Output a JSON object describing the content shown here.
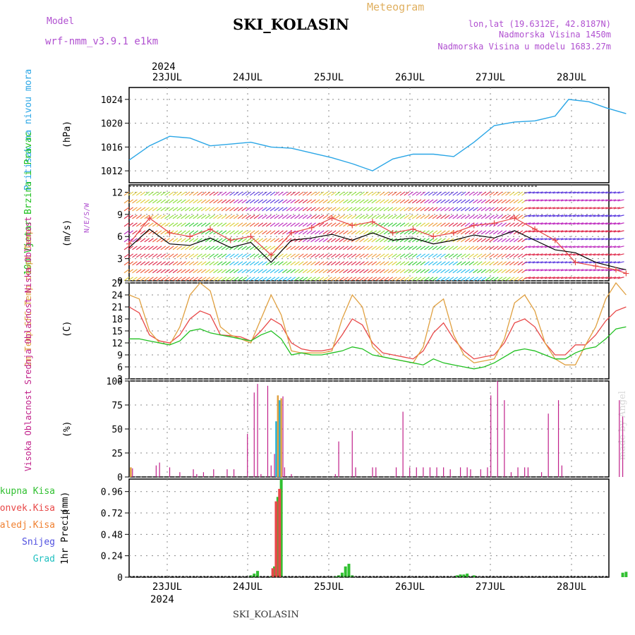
{
  "header": {
    "model_label": "Model",
    "model_value": "wrf-nmm_v3.9.1 e1km",
    "location": "SKI_KOLASIN",
    "chart_kind": "Meteogram",
    "lonlat": "lon,lat (19.6312E, 42.8187N)",
    "altitude": "Nadmorska Visina 1450m",
    "model_altitude": "Nadmorska Visina u modelu 1683.27m",
    "watermark": "made by Angel",
    "footer_station": "SKI_KOLASIN"
  },
  "colors": {
    "pressure": "#2aa6e6",
    "temp2m": "#e84848",
    "sfc_temp": "#e0a040",
    "dewpoint": "#20c020",
    "high_cloud": "#20b0d8",
    "mid_cloud": "#e0a040",
    "low_cloud": "#c0208a",
    "wind_mean": "#000000",
    "gust": "#e84848",
    "model_label": "#b050d0",
    "total_precip": "#30c030",
    "convective": "#e84848",
    "freezing": "#f08030",
    "snow": "#5050e0",
    "grad": "#20c0c0"
  },
  "chart_data": [
    {
      "type": "line",
      "name": "pressure",
      "ylabel": "Pritisak na nivou mora",
      "unit": "(hPa)",
      "ylim": [
        1010,
        1026
      ],
      "yticks": [
        1012,
        1016,
        1020,
        1024
      ],
      "x_days_top": [
        "23JUL",
        "24JUL",
        "25JUL",
        "26JUL",
        "27JUL",
        "28JUL"
      ],
      "year": "2024",
      "x_hours": [
        0,
        6,
        12,
        18,
        24,
        30,
        36,
        42,
        48,
        54,
        60,
        66,
        72,
        78,
        84,
        90,
        96,
        102,
        108,
        114,
        120,
        126,
        130,
        136,
        141,
        147
      ],
      "values": [
        1013.8,
        1016.2,
        1017.8,
        1017.5,
        1016.2,
        1016.5,
        1016.8,
        1016.0,
        1015.8,
        1015.0,
        1014.2,
        1013.2,
        1012.0,
        1014.0,
        1014.8,
        1014.8,
        1014.4,
        1016.8,
        1019.6,
        1020.2,
        1020.4,
        1021.2,
        1024.0,
        1023.6,
        1022.6,
        1021.6
      ],
      "grid": true
    },
    {
      "type": "line",
      "name": "wind",
      "ylabel": "10m Vjetar Brzina i Pravac",
      "unit": "(m/s)",
      "ylim": [
        0,
        13
      ],
      "yticks": [
        0,
        3,
        6,
        9,
        12
      ],
      "compass": "N/E/S/W",
      "series": [
        {
          "name": "speed",
          "x_hours": [
            0,
            6,
            12,
            18,
            24,
            30,
            36,
            42,
            48,
            54,
            60,
            66,
            72,
            78,
            84,
            90,
            96,
            102,
            108,
            114,
            120,
            126,
            132,
            138,
            144,
            147
          ],
          "values": [
            4.5,
            7.0,
            5.0,
            4.8,
            5.8,
            4.5,
            5.2,
            2.5,
            5.5,
            5.8,
            6.3,
            5.5,
            6.5,
            5.5,
            5.8,
            5.0,
            5.5,
            6.2,
            5.8,
            6.8,
            5.5,
            4.2,
            3.8,
            2.5,
            1.8,
            1.5
          ]
        },
        {
          "name": "gust",
          "x_hours": [
            0,
            6,
            12,
            18,
            24,
            30,
            36,
            42,
            48,
            54,
            60,
            66,
            72,
            78,
            84,
            90,
            96,
            102,
            108,
            114,
            120,
            126,
            132,
            138,
            144,
            147
          ],
          "values": [
            5.0,
            8.5,
            6.5,
            6.0,
            7.0,
            5.5,
            6.0,
            3.5,
            6.5,
            7.2,
            8.5,
            7.5,
            8.0,
            6.5,
            7.0,
            6.0,
            6.5,
            7.5,
            7.8,
            8.5,
            7.0,
            5.5,
            2.5,
            2.0,
            1.5,
            1.0
          ]
        }
      ],
      "grid": true
    },
    {
      "type": "line",
      "name": "temperature",
      "ylabel": "2m Temp SFC Temp dewpt Temp",
      "unit": "(C)",
      "ylim": [
        3,
        27
      ],
      "yticks": [
        3,
        6,
        9,
        12,
        15,
        18,
        21,
        24,
        27
      ],
      "series": [
        {
          "name": "2m Temp",
          "x_hours": [
            0,
            3,
            6,
            9,
            12,
            15,
            18,
            21,
            24,
            27,
            30,
            33,
            36,
            39,
            42,
            45,
            48,
            51,
            54,
            57,
            60,
            63,
            66,
            69,
            72,
            75,
            78,
            81,
            84,
            87,
            90,
            93,
            96,
            99,
            102,
            105,
            108,
            111,
            114,
            117,
            120,
            123,
            126,
            129,
            132,
            135,
            138,
            141,
            144,
            147
          ],
          "values": [
            21,
            19.5,
            14,
            12.5,
            12,
            14,
            18,
            20,
            19,
            14,
            13.8,
            13.5,
            12.5,
            15,
            18,
            16.5,
            12,
            10.5,
            10,
            10,
            10.5,
            14,
            18,
            16.5,
            12,
            9.5,
            9,
            8.5,
            8,
            10,
            14.5,
            17,
            13,
            10,
            8,
            8.5,
            9,
            12,
            17,
            18,
            16,
            12,
            9,
            9,
            11.5,
            11.5,
            14,
            17.5,
            20,
            21
          ]
        },
        {
          "name": "SFC Temp",
          "x_hours": [
            0,
            3,
            6,
            9,
            12,
            15,
            18,
            21,
            24,
            27,
            30,
            33,
            36,
            39,
            42,
            45,
            48,
            51,
            54,
            57,
            60,
            63,
            66,
            69,
            72,
            75,
            78,
            81,
            84,
            87,
            90,
            93,
            96,
            99,
            102,
            105,
            108,
            111,
            114,
            117,
            120,
            123,
            126,
            129,
            132,
            135,
            138,
            141,
            144,
            147
          ],
          "values": [
            24,
            23,
            15,
            12,
            11.5,
            16,
            24,
            27,
            25,
            16,
            14,
            13,
            12,
            18,
            24,
            19,
            10,
            9.5,
            9.5,
            9.5,
            10,
            18,
            24,
            21,
            11,
            8.5,
            8,
            7.5,
            7,
            11,
            21,
            23,
            14,
            9,
            7,
            7.5,
            8,
            13,
            22,
            24,
            20,
            12,
            8,
            6.5,
            6.5,
            11.5,
            16,
            23,
            27,
            24
          ]
        },
        {
          "name": "dewpt Temp",
          "x_hours": [
            0,
            3,
            6,
            9,
            12,
            15,
            18,
            21,
            24,
            27,
            30,
            33,
            36,
            39,
            42,
            45,
            48,
            51,
            54,
            57,
            60,
            63,
            66,
            69,
            72,
            75,
            78,
            81,
            84,
            87,
            90,
            93,
            96,
            99,
            102,
            105,
            108,
            111,
            114,
            117,
            120,
            123,
            126,
            129,
            132,
            135,
            138,
            141,
            144,
            147
          ],
          "values": [
            13,
            13,
            12.5,
            12,
            11.5,
            12.5,
            15,
            15.5,
            14.5,
            14,
            13.5,
            13,
            12.5,
            14,
            15,
            13,
            9,
            9.5,
            9,
            9,
            9.5,
            10,
            11,
            10.5,
            9,
            8.5,
            8,
            7.5,
            7,
            6.5,
            8,
            7,
            6.5,
            6,
            5.5,
            6,
            7,
            8.5,
            10,
            10.5,
            10,
            9,
            8,
            8,
            9.5,
            10.5,
            11,
            13,
            15.5,
            16
          ]
        }
      ],
      "grid": true
    },
    {
      "type": "bar",
      "name": "cloud",
      "ylabel": "Visoka Oblacnost Srednja Oblacnost Niska Oblacnost",
      "unit": "(%)",
      "ylim": [
        0,
        100
      ],
      "yticks": [
        0,
        25,
        50,
        75,
        100
      ],
      "series": [
        {
          "name": "Visoka Oblacnost",
          "x_hours": [
            43.5,
            44.5
          ],
          "values": [
            58,
            80
          ]
        },
        {
          "name": "Srednja Oblacnost",
          "x_hours": [
            0.5,
            44.0,
            45.0
          ],
          "values": [
            10,
            85,
            82
          ]
        },
        {
          "name": "Niska Oblacnost",
          "x_hours": [
            1,
            8,
            9,
            12,
            15,
            19,
            20,
            22,
            25,
            29,
            31,
            35,
            37,
            38,
            39,
            41,
            42,
            43,
            45.5,
            46,
            48,
            61,
            62,
            66,
            67,
            72,
            73,
            79,
            81,
            83,
            85,
            87,
            89,
            91,
            93,
            95,
            98,
            100,
            101,
            104,
            106,
            107,
            109,
            111,
            113,
            115,
            117,
            118,
            122,
            124,
            127,
            128,
            145,
            146
          ],
          "values": [
            9,
            12,
            15,
            10,
            5,
            8,
            3,
            5,
            8,
            8,
            8,
            45,
            88,
            97,
            3,
            95,
            12,
            24,
            84,
            10,
            3,
            3,
            37,
            48,
            10,
            10,
            10,
            10,
            68,
            10,
            10,
            10,
            10,
            10,
            10,
            8,
            10,
            10,
            8,
            8,
            10,
            85,
            100,
            80,
            5,
            10,
            10,
            10,
            5,
            66,
            80,
            12,
            80,
            63
          ]
        }
      ],
      "grid": true
    },
    {
      "type": "bar",
      "name": "precipitation",
      "ylabel": "1hr Precip",
      "unit": "(mm)",
      "ylim": [
        0,
        1.1
      ],
      "yticks": [
        0,
        0.24,
        0.48,
        0.72,
        0.96
      ],
      "x_days_bottom": [
        "23JUL",
        "24JUL",
        "25JUL",
        "26JUL",
        "27JUL",
        "28JUL"
      ],
      "year_bottom": "2024",
      "legend": [
        "Ukupna Kisa",
        "Konvek.Kisa",
        "Zaledj.Kisa",
        "Snijeg",
        "Grad"
      ],
      "series": [
        {
          "name": "Ukupna Kisa",
          "x_hours": [
            36,
            37,
            38,
            42,
            43,
            44,
            45,
            61,
            62,
            63,
            64,
            65,
            66,
            97,
            98,
            99,
            100,
            102,
            146,
            147
          ],
          "values": [
            0.02,
            0.04,
            0.07,
            0.01,
            0.12,
            0.9,
            1.1,
            0.01,
            0.02,
            0.05,
            0.12,
            0.15,
            0.02,
            0.02,
            0.03,
            0.03,
            0.04,
            0.02,
            0.05,
            0.06
          ]
        },
        {
          "name": "Konvek.Kisa",
          "x_hours": [
            42.5,
            43.5,
            44.5
          ],
          "values": [
            0.1,
            0.85,
            0.99
          ]
        }
      ],
      "grid": true
    }
  ]
}
